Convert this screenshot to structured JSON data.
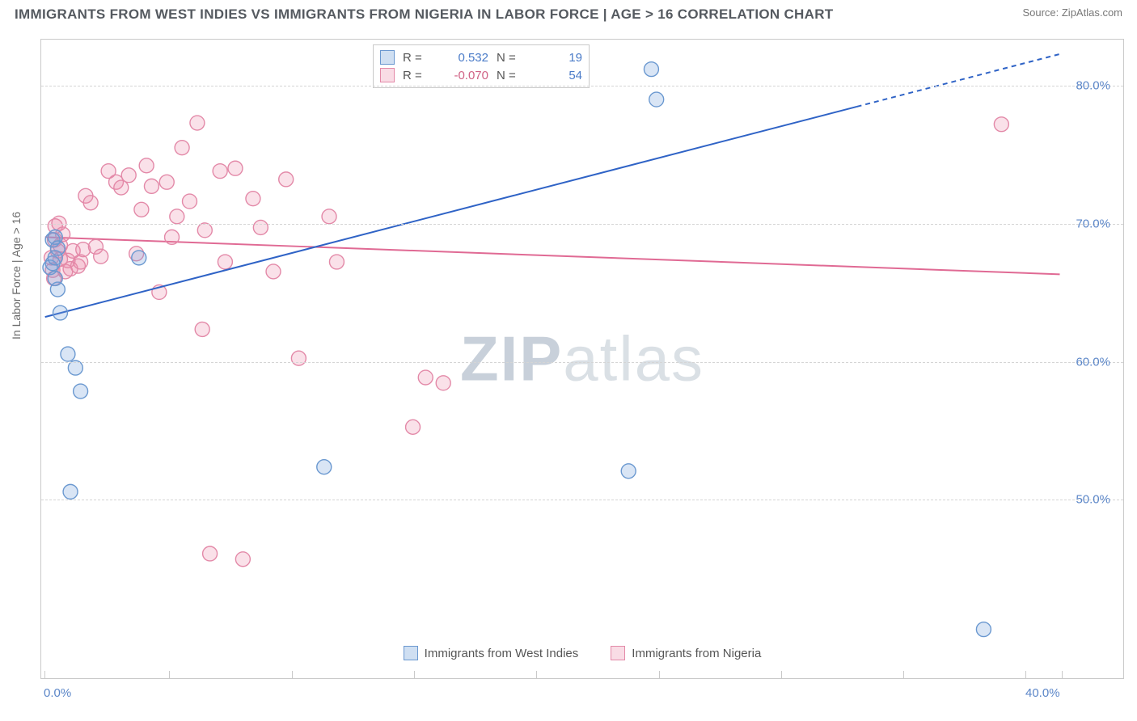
{
  "title": "IMMIGRANTS FROM WEST INDIES VS IMMIGRANTS FROM NIGERIA IN LABOR FORCE | AGE > 16 CORRELATION CHART",
  "source_label": "Source: ZipAtlas.com",
  "y_axis_label": "In Labor Force | Age > 16",
  "watermark_bold": "ZIP",
  "watermark_light": "atlas",
  "chart": {
    "type": "scatter",
    "xlim": [
      0,
      40
    ],
    "ylim": [
      40,
      83
    ],
    "x_ticks": [
      0,
      4.91,
      9.72,
      14.53,
      19.34,
      24.15,
      28.96,
      33.77,
      38.58,
      40
    ],
    "x_tick_major": 0,
    "x_tick_major2": 40,
    "y_ticks": [
      50,
      60,
      70,
      80
    ],
    "y_tick_labels": [
      "50.0%",
      "60.0%",
      "70.0%",
      "80.0%"
    ],
    "x_tick_labels": {
      "0": "0.0%",
      "40": "40.0%"
    },
    "background_color": "#ffffff",
    "grid_color": "#d5d5d5",
    "axis_color": "#c9c9c9",
    "series": [
      {
        "name": "Immigrants from West Indies",
        "marker_color_fill": "rgba(117,162,218,0.28)",
        "marker_color_stroke": "#6a98d0",
        "marker_radius": 9,
        "r": 0.532,
        "n": 19,
        "trend_color": "#2f63c6",
        "trend_width": 2,
        "trend": {
          "x1": 0,
          "y1": 63.2,
          "x2": 40,
          "y2": 82.3,
          "dash_from_x": 32
        },
        "points": [
          [
            0.2,
            66.8
          ],
          [
            0.3,
            67.1
          ],
          [
            0.3,
            68.8
          ],
          [
            0.4,
            69.0
          ],
          [
            0.4,
            67.5
          ],
          [
            0.5,
            68.2
          ],
          [
            0.5,
            65.2
          ],
          [
            0.6,
            63.5
          ],
          [
            0.9,
            60.5
          ],
          [
            1.2,
            59.5
          ],
          [
            1.4,
            57.8
          ],
          [
            1.0,
            50.5
          ],
          [
            3.7,
            67.5
          ],
          [
            11.0,
            52.3
          ],
          [
            23.0,
            52.0
          ],
          [
            23.9,
            81.2
          ],
          [
            24.1,
            79.0
          ],
          [
            37.0,
            40.5
          ],
          [
            0.4,
            66.0
          ]
        ]
      },
      {
        "name": "Immigrants from Nigeria",
        "marker_color_fill": "rgba(235,140,170,0.26)",
        "marker_color_stroke": "#e389a8",
        "marker_radius": 9,
        "r": -0.07,
        "n": 54,
        "trend_color": "#e06a94",
        "trend_width": 2,
        "trend": {
          "x1": 0,
          "y1": 69.0,
          "x2": 40,
          "y2": 66.3
        },
        "points": [
          [
            0.25,
            67.5
          ],
          [
            0.3,
            66.6
          ],
          [
            0.35,
            66.0
          ],
          [
            0.38,
            68.8
          ],
          [
            0.4,
            69.8
          ],
          [
            0.5,
            68.0
          ],
          [
            0.55,
            70.0
          ],
          [
            0.6,
            67.4
          ],
          [
            0.6,
            68.4
          ],
          [
            0.7,
            69.2
          ],
          [
            0.8,
            66.5
          ],
          [
            0.9,
            67.3
          ],
          [
            1.0,
            66.7
          ],
          [
            1.1,
            68.0
          ],
          [
            1.3,
            66.9
          ],
          [
            1.4,
            67.2
          ],
          [
            1.5,
            68.1
          ],
          [
            1.6,
            72.0
          ],
          [
            1.8,
            71.5
          ],
          [
            2.0,
            68.3
          ],
          [
            2.2,
            67.6
          ],
          [
            2.5,
            73.8
          ],
          [
            2.8,
            73.0
          ],
          [
            3.0,
            72.6
          ],
          [
            3.3,
            73.5
          ],
          [
            3.6,
            67.8
          ],
          [
            3.8,
            71.0
          ],
          [
            4.0,
            74.2
          ],
          [
            4.2,
            72.7
          ],
          [
            4.5,
            65.0
          ],
          [
            4.8,
            73.0
          ],
          [
            5.0,
            69.0
          ],
          [
            5.2,
            70.5
          ],
          [
            5.4,
            75.5
          ],
          [
            5.7,
            71.6
          ],
          [
            6.0,
            77.3
          ],
          [
            6.2,
            62.3
          ],
          [
            6.3,
            69.5
          ],
          [
            6.5,
            46.0
          ],
          [
            6.9,
            73.8
          ],
          [
            7.1,
            67.2
          ],
          [
            7.5,
            74.0
          ],
          [
            7.8,
            45.6
          ],
          [
            8.2,
            71.8
          ],
          [
            8.5,
            69.7
          ],
          [
            9.0,
            66.5
          ],
          [
            9.5,
            73.2
          ],
          [
            10.0,
            60.2
          ],
          [
            11.2,
            70.5
          ],
          [
            11.5,
            67.2
          ],
          [
            15.0,
            58.8
          ],
          [
            15.7,
            58.4
          ],
          [
            14.5,
            55.2
          ],
          [
            37.7,
            77.2
          ]
        ]
      }
    ]
  },
  "legend_top": {
    "rows": [
      {
        "swatch": "blue",
        "r_label": "R =",
        "r_val": "0.532",
        "n_label": "N =",
        "n_val": "19"
      },
      {
        "swatch": "pink",
        "r_label": "R =",
        "r_val": "-0.070",
        "n_label": "N =",
        "n_val": "54"
      }
    ]
  },
  "legend_bottom": [
    {
      "swatch": "blue",
      "label": "Immigrants from West Indies"
    },
    {
      "swatch": "pink",
      "label": "Immigrants from Nigeria"
    }
  ]
}
